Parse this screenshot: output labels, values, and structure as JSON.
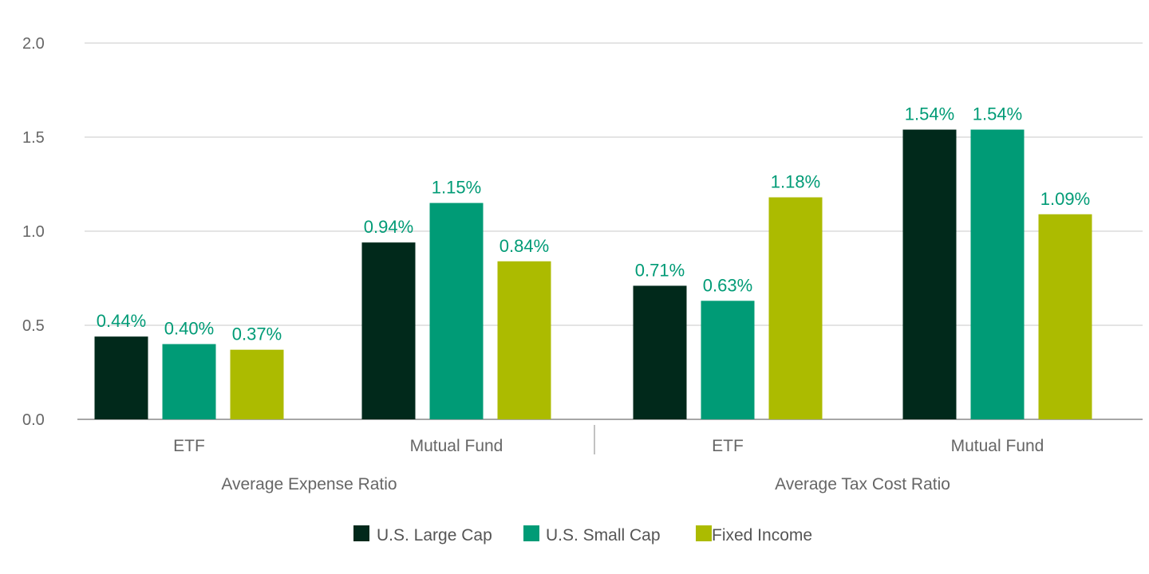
{
  "chart_data": {
    "type": "bar",
    "groups": [
      {
        "label": "Average Expense Ratio",
        "categories": [
          "ETF",
          "Mutual Fund"
        ]
      },
      {
        "label": "Average Tax Cost Ratio",
        "categories": [
          "ETF",
          "Mutual Fund"
        ]
      }
    ],
    "categories": [
      "ETF",
      "Mutual Fund",
      "ETF",
      "Mutual Fund"
    ],
    "series": [
      {
        "name": "U.S. Large Cap",
        "color": "#01291b",
        "values": [
          0.44,
          0.94,
          0.71,
          1.54
        ],
        "labels": [
          "0.44%",
          "0.94%",
          "0.71%",
          "1.54%"
        ]
      },
      {
        "name": "U.S. Small Cap",
        "color": "#009b76",
        "values": [
          0.4,
          1.15,
          0.63,
          1.54
        ],
        "labels": [
          "0.40%",
          "1.15%",
          "0.63%",
          "1.54%"
        ]
      },
      {
        "name": "Fixed Income",
        "color": "#acbb00",
        "values": [
          0.37,
          0.84,
          1.18,
          1.09
        ],
        "labels": [
          "0.37%",
          "0.84%",
          "1.18%",
          "1.09%"
        ]
      }
    ],
    "yticks": [
      "0.0",
      "0.5",
      "1.0",
      "1.5",
      "2.0"
    ],
    "ylim": [
      0,
      2.0
    ],
    "grid": true,
    "legend_position": "bottom-center",
    "data_label_color": "#009b76",
    "gridline_color": "#c8c8c8",
    "axis_color": "#888888"
  }
}
